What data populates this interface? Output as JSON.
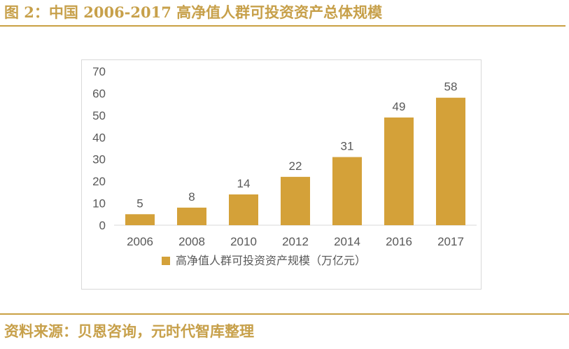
{
  "figure": {
    "title": "图 2：中国 2006-2017 高净值人群可投资资产总体规模",
    "source": "资料来源：贝恩咨询，元时代智库整理"
  },
  "colors": {
    "accent": "#C9A043",
    "bar": "#D4A139",
    "text": "#595959",
    "frame": "#D9D9D9"
  },
  "chart_data": {
    "type": "bar",
    "categories": [
      "2006",
      "2008",
      "2010",
      "2012",
      "2014",
      "2016",
      "2017"
    ],
    "series": [
      {
        "name": "高净值人群可投资资产规模（万亿元）",
        "values": [
          5,
          8,
          14,
          22,
          31,
          49,
          58
        ]
      }
    ],
    "ylim": [
      0,
      70
    ],
    "yticks": [
      0,
      10,
      20,
      30,
      40,
      50,
      60,
      70
    ],
    "data_labels": true,
    "grid": false,
    "legend_position": "bottom"
  }
}
